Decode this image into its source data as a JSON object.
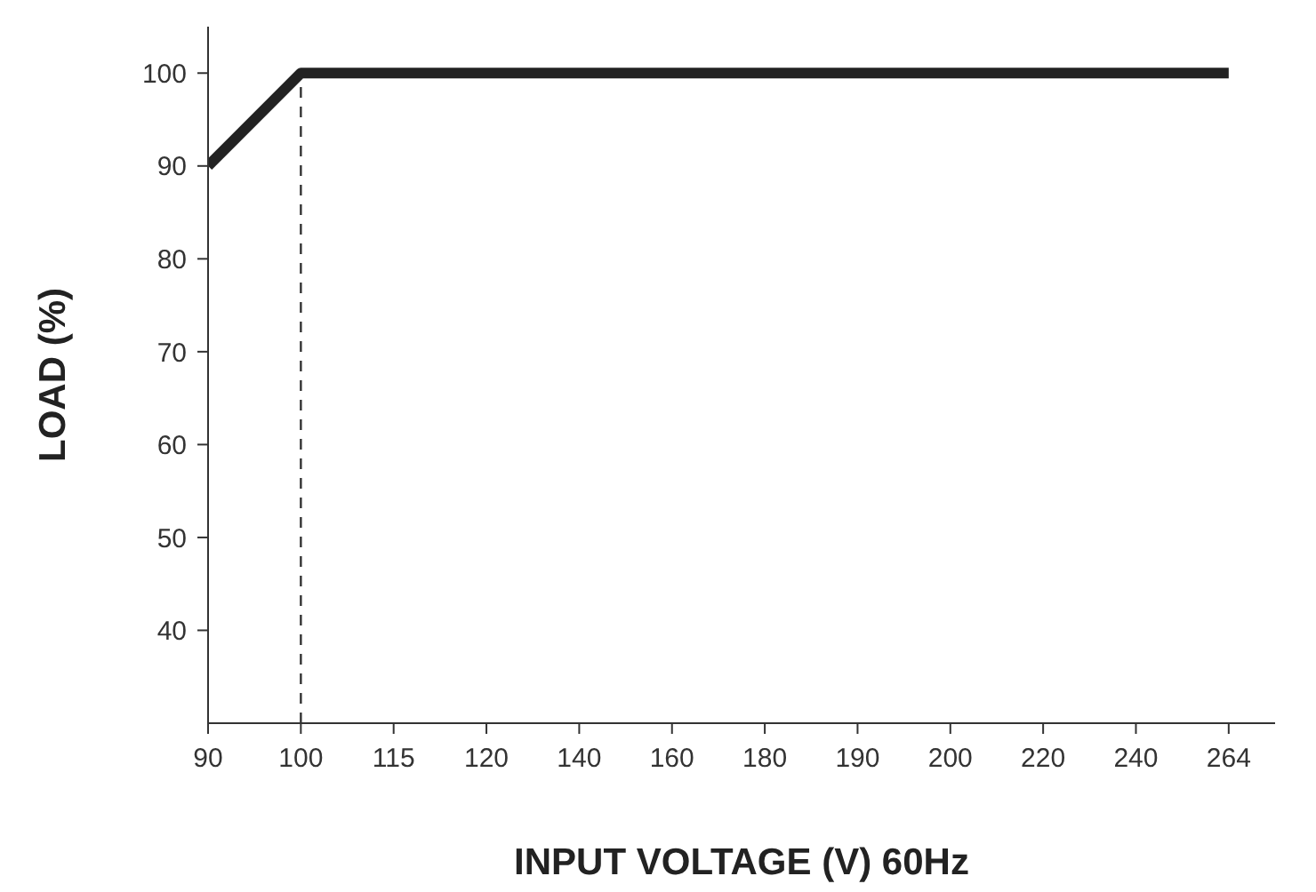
{
  "chart_data": {
    "type": "line",
    "xlabel": "INPUT VOLTAGE (V) 60Hz",
    "ylabel": "LOAD (%)",
    "categories": [
      "90",
      "100",
      "115",
      "120",
      "140",
      "160",
      "180",
      "190",
      "200",
      "220",
      "240",
      "264"
    ],
    "series": [
      {
        "color": "#222222",
        "values": [
          90,
          100,
          100,
          100,
          100,
          100,
          100,
          100,
          100,
          100,
          100,
          100
        ]
      }
    ],
    "ylim": [
      30,
      105
    ],
    "yticks": [
      40,
      50,
      60,
      70,
      80,
      90,
      100
    ],
    "ref_lines": [
      {
        "axis": "x",
        "value": "100",
        "line_style": "dashed",
        "color": "#333333"
      }
    ],
    "grid": false,
    "legend": false,
    "marker": "none",
    "line_style": "solid"
  }
}
